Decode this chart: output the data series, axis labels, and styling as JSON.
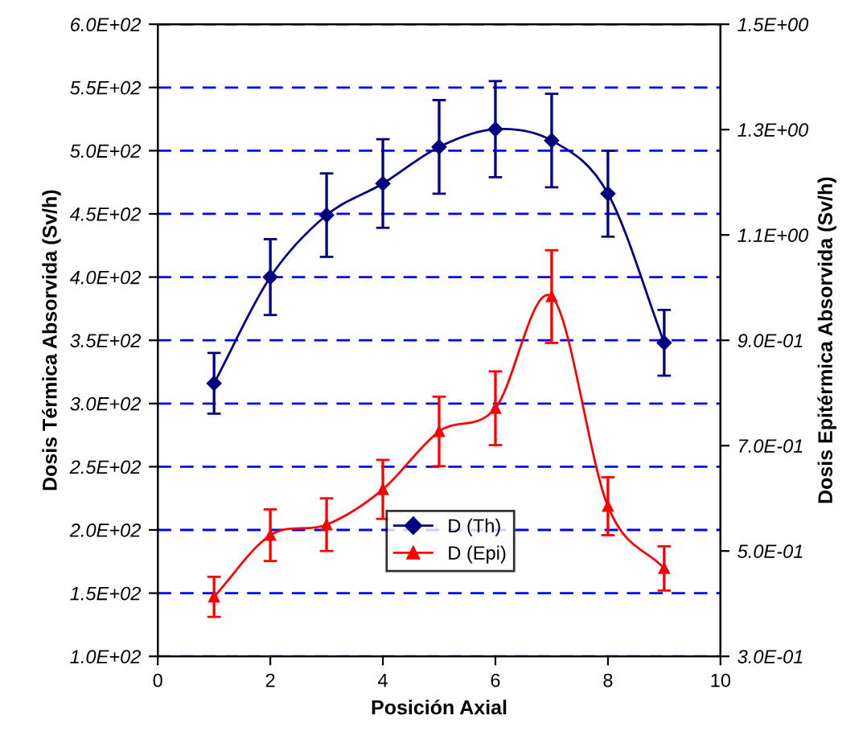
{
  "chart_data": {
    "type": "line",
    "xlabel": "Posición Axial",
    "ylabel": "Dosis Térmica Absorvida (Sv/h)",
    "y2label": "Dosis Epitérmica Absorvida (Sv/h)",
    "x": [
      1,
      2,
      3,
      4,
      5,
      6,
      7,
      8,
      9
    ],
    "series": [
      {
        "name": "D (Th)",
        "color": "#000080",
        "marker": "diamond",
        "values": [
          316,
          400,
          449,
          474,
          503,
          517,
          508,
          466,
          348
        ],
        "errors": [
          24,
          30,
          33,
          35,
          37,
          38,
          37,
          34,
          26
        ]
      },
      {
        "name": "D (Epi)",
        "color": "#ff0000",
        "marker": "triangle",
        "axis": "y2",
        "values": [
          0.413,
          0.53,
          0.55,
          0.617,
          0.727,
          0.771,
          0.983,
          0.585,
          0.467
        ],
        "errors": [
          0.038,
          0.049,
          0.05,
          0.056,
          0.066,
          0.07,
          0.088,
          0.055,
          0.042
        ]
      }
    ],
    "xlim": [
      0,
      10
    ],
    "xticks": [
      0,
      2,
      4,
      6,
      8,
      10
    ],
    "ylim": [
      100,
      600
    ],
    "yticks": [
      {
        "value": 100,
        "label": "1.0E+02"
      },
      {
        "value": 150,
        "label": "1.5E+02"
      },
      {
        "value": 200,
        "label": "2.0E+02"
      },
      {
        "value": 250,
        "label": "2.5E+02"
      },
      {
        "value": 300,
        "label": "3.0E+02"
      },
      {
        "value": 350,
        "label": "3.5E+02"
      },
      {
        "value": 400,
        "label": "4.0E+02"
      },
      {
        "value": 450,
        "label": "4.5E+02"
      },
      {
        "value": 500,
        "label": "5.0E+02"
      },
      {
        "value": 550,
        "label": "5.5E+02"
      },
      {
        "value": 600,
        "label": "6.0E+02"
      }
    ],
    "y2lim": [
      0.3,
      1.5
    ],
    "y2ticks": [
      {
        "value": 0.3,
        "label": "3.0E-01"
      },
      {
        "value": 0.5,
        "label": "5.0E-01"
      },
      {
        "value": 0.7,
        "label": "7.0E-01"
      },
      {
        "value": 0.9,
        "label": "9.0E-01"
      },
      {
        "value": 1.1,
        "label": "1.1E+00"
      },
      {
        "value": 1.3,
        "label": "1.3E+00"
      },
      {
        "value": 1.5,
        "label": "1.5E+00"
      }
    ],
    "grid": "y",
    "legend": "bottom",
    "line_style": "solid"
  }
}
